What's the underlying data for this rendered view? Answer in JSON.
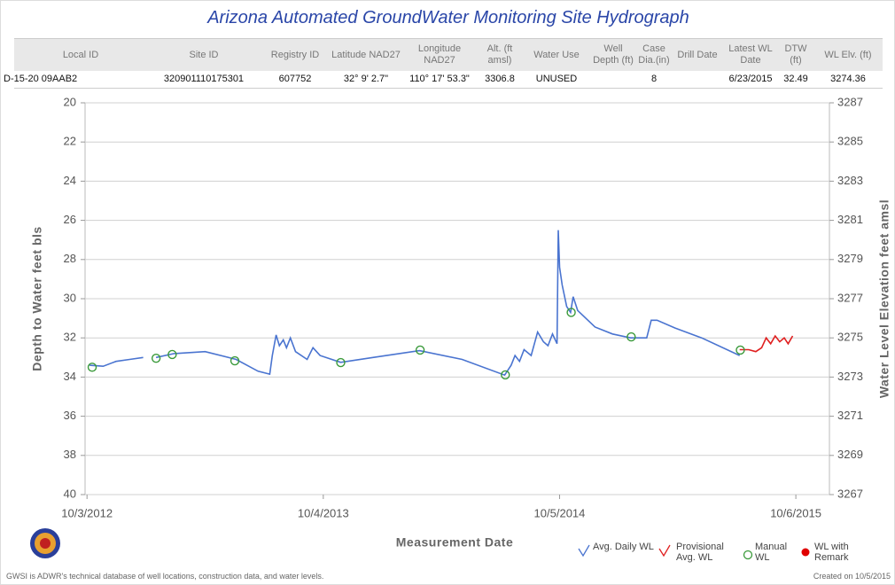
{
  "header": {
    "title": "Arizona Automated GroundWater Monitoring Site Hydrograph",
    "columns": [
      "Local ID",
      "Site ID",
      "Registry ID",
      "Latitude NAD27",
      "Longitude NAD27",
      "Alt. (ft amsl)",
      "Water Use",
      "Well Depth (ft)",
      "Case Dia.(in)",
      "Drill Date",
      "Latest WL Date",
      "DTW (ft)",
      "WL Elv. (ft)"
    ],
    "row": [
      "D-15-20 09AAB2",
      "320901110175301",
      "607752",
      "32° 9' 2.7\"",
      "110° 17' 53.3\"",
      "3306.8",
      "UNUSED",
      null,
      "8",
      null,
      "6/23/2015",
      "32.49",
      "3274.36"
    ]
  },
  "chart_data": {
    "type": "line",
    "ylabel": "Depth to Water feet bls",
    "y2label": "Water Level Elevation feet amsl",
    "xlabel": "Measurement Date",
    "ylim": [
      20,
      40
    ],
    "y_inverted": true,
    "yticks": [
      20,
      22,
      24,
      26,
      28,
      30,
      32,
      34,
      36,
      38,
      40
    ],
    "y2lim": [
      3267,
      3287
    ],
    "y2ticks": [
      3287,
      3285,
      3283,
      3281,
      3279,
      3277,
      3275,
      3273,
      3271,
      3269,
      3267
    ],
    "xlim": [
      "2012-09-30",
      "2015-11-27"
    ],
    "xticks": [
      {
        "value": "2012-10-03",
        "label": "10/3/2012"
      },
      {
        "value": "2013-10-04",
        "label": "10/4/2013"
      },
      {
        "value": "2014-10-05",
        "label": "10/5/2014"
      },
      {
        "value": "2015-10-06",
        "label": "10/6/2015"
      }
    ],
    "grid": true,
    "legend": "bottom-right",
    "series": [
      {
        "name": "Avg. Daily WL",
        "color": "#4a74d0",
        "style": "line",
        "x": [
          "2012-10-07",
          "2012-10-28",
          "2012-11-17",
          "2012-12-08",
          "2012-12-29",
          null,
          "2013-01-18",
          "2013-02-15",
          "2013-04-04",
          "2013-05-22",
          "2013-06-25",
          "2013-07-13",
          "2013-07-17",
          "2013-07-23",
          "2013-07-28",
          "2013-08-03",
          "2013-08-08",
          "2013-08-14",
          "2013-08-22",
          "2013-09-09",
          "2013-09-18",
          "2013-09-29",
          "2013-10-31",
          "2013-12-20",
          "2014-03-02",
          "2014-05-07",
          "2014-07-12",
          "2014-07-22",
          "2014-07-28",
          "2014-08-04",
          "2014-08-11",
          "2014-08-22",
          "2014-09-01",
          "2014-09-10",
          "2014-09-17",
          "2014-09-24",
          "2014-10-01",
          "2014-10-03",
          "2014-10-05",
          "2014-10-09",
          "2014-10-16",
          "2014-10-22",
          "2014-10-26",
          "2014-11-02",
          "2014-11-29",
          "2014-12-26",
          "2015-01-23",
          "2015-02-17",
          "2015-02-24",
          "2015-03-05",
          "2015-04-02",
          "2015-05-13",
          "2015-07-11"
        ],
        "values": [
          33.4,
          33.45,
          33.2,
          33.1,
          33.0,
          null,
          33.0,
          32.8,
          32.7,
          33.1,
          33.7,
          33.85,
          32.9,
          31.85,
          32.4,
          32.1,
          32.5,
          32.0,
          32.7,
          33.1,
          32.5,
          32.9,
          33.25,
          33.0,
          32.65,
          33.1,
          33.9,
          33.4,
          32.9,
          33.2,
          32.6,
          32.9,
          31.7,
          32.2,
          32.4,
          31.8,
          32.3,
          26.5,
          28.4,
          29.3,
          30.4,
          30.7,
          29.9,
          30.6,
          31.45,
          31.8,
          32.0,
          32.0,
          31.1,
          31.1,
          31.5,
          32.0,
          32.9
        ]
      },
      {
        "name": "Provisional Avg. WL",
        "color": "#e02020",
        "style": "line",
        "x": [
          "2015-07-11",
          "2015-07-25",
          "2015-08-05",
          "2015-08-14",
          "2015-08-21",
          "2015-08-28",
          "2015-09-04",
          "2015-09-11",
          "2015-09-18",
          "2015-09-24",
          "2015-10-01"
        ],
        "values": [
          32.6,
          32.6,
          32.7,
          32.5,
          32.0,
          32.3,
          31.9,
          32.2,
          32.0,
          32.3,
          31.9
        ]
      },
      {
        "name": "Manual WL",
        "color": "#3a9a3a",
        "style": "circle",
        "x": [
          "2012-10-11",
          "2013-01-18",
          "2013-02-12",
          "2013-05-20",
          "2013-10-31",
          "2014-03-03",
          "2014-07-13",
          "2014-10-23",
          "2015-01-24",
          "2015-07-12"
        ],
        "values": [
          33.5,
          33.04,
          32.85,
          33.17,
          33.26,
          32.62,
          33.89,
          30.7,
          31.95,
          32.62
        ]
      },
      {
        "name": "WL with Remark",
        "color": "#e00000",
        "style": "dot",
        "x": [],
        "values": []
      }
    ]
  },
  "footer": {
    "note": "GWSI is ADWR's technical database of well locations, construction data, and water levels.",
    "created": "Created on 10/5/2015"
  }
}
